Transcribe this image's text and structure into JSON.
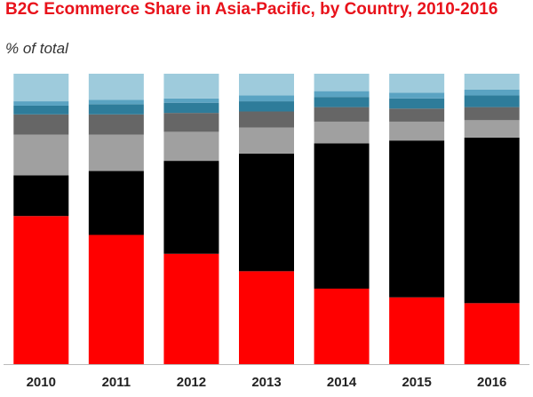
{
  "chart_data": {
    "type": "stacked-bar",
    "title": "B2C Ecommerce Share in Asia-Pacific, by Country, 2010-2016",
    "subtitle": "% of total",
    "categories": [
      "2010",
      "2011",
      "2012",
      "2013",
      "2014",
      "2015",
      "2016"
    ],
    "ylim": [
      0,
      100
    ],
    "series": [
      {
        "color": "#ff0000",
        "values": [
          51,
          44.5,
          38,
          32,
          26,
          23,
          21
        ]
      },
      {
        "color": "#000000",
        "values": [
          14,
          22,
          32,
          40.5,
          50,
          54,
          57
        ]
      },
      {
        "color": "#a0a0a0",
        "values": [
          14,
          12.5,
          10,
          9,
          7.5,
          6.5,
          6
        ]
      },
      {
        "color": "#666666",
        "values": [
          7,
          7,
          6.5,
          5.5,
          5,
          4.5,
          4.5
        ]
      },
      {
        "color": "#2e7c9a",
        "values": [
          3,
          3.5,
          3.5,
          3.5,
          3.5,
          3.5,
          4
        ]
      },
      {
        "color": "#5aa3c2",
        "values": [
          1.5,
          1.5,
          1.5,
          2,
          2,
          2,
          2
        ]
      },
      {
        "color": "#9ecbdc",
        "values": [
          9.5,
          9,
          8.5,
          7.5,
          6,
          6.5,
          5.5
        ]
      }
    ]
  }
}
